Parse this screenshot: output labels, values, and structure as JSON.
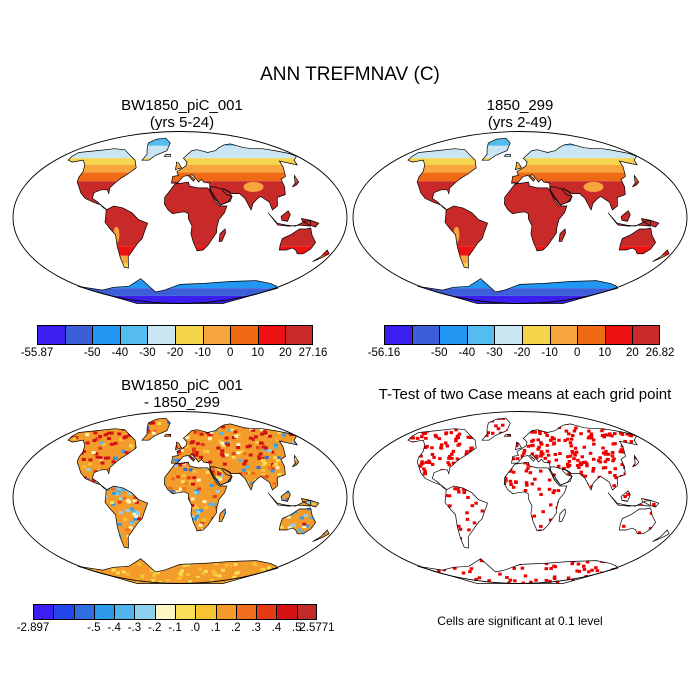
{
  "title": "ANN TREFMNAV (C)",
  "panels": {
    "case1": {
      "line1": "BW1850_piC_001",
      "line2": "(yrs 5-24)"
    },
    "case2": {
      "line1": "1850_299",
      "line2": "(yrs 2-49)"
    },
    "diff": {
      "line1": "BW1850_piC_001",
      "line2": "- 1850_299"
    },
    "ttest": {
      "line1": "T-Test of two Case means at each grid point"
    }
  },
  "colorbars": {
    "case1": {
      "colors": [
        "#3a1ff0",
        "#3c5ed8",
        "#2196f3",
        "#55bcf0",
        "#c9e6f2",
        "#f5d54b",
        "#f7a53c",
        "#f06a16",
        "#ee1111",
        "#c82a2a"
      ],
      "labels": [
        "-55.87",
        "-50",
        "-40",
        "-30",
        "-20",
        "-10",
        "0",
        "10",
        "20",
        "27.16"
      ]
    },
    "case2": {
      "colors": [
        "#3a1ff0",
        "#3c5ed8",
        "#2196f3",
        "#55bcf0",
        "#c9e6f2",
        "#f5d54b",
        "#f7a53c",
        "#f06a16",
        "#ee1111",
        "#c82a2a"
      ],
      "labels": [
        "-56.16",
        "-50",
        "-40",
        "-30",
        "-20",
        "-10",
        "0",
        "10",
        "20",
        "26.82"
      ]
    },
    "diff": {
      "colors": [
        "#3a1ff0",
        "#2346e8",
        "#2f6ee0",
        "#2f9be8",
        "#53b4ec",
        "#8fd0ee",
        "#fcf6c0",
        "#f9df57",
        "#f6c331",
        "#f39c2b",
        "#f16e1c",
        "#e63a14",
        "#d41216",
        "#c12a2a"
      ],
      "labels": [
        "-2.897",
        "-.5",
        "-.4",
        "-.3",
        "-.2",
        "-.1",
        ".0",
        ".1",
        ".2",
        ".3",
        ".4",
        ".5",
        "2.5771"
      ]
    }
  },
  "note": "Cells are significant at 0.1 level",
  "map_colors": {
    "land_coast": "#000000",
    "significant": "#ee0000"
  }
}
